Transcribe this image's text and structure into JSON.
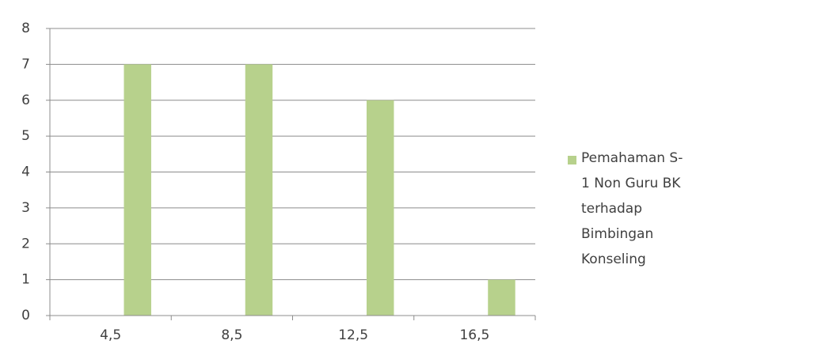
{
  "chart_data": {
    "type": "bar",
    "categories": [
      "4,5",
      "8,5",
      "12,5",
      "16,5"
    ],
    "series": [
      {
        "name": "Pemahaman S-1 Non Guru BK terhadap Bimbingan Konseling",
        "color": "#b7d18c",
        "values": [
          7,
          7,
          6,
          1
        ]
      }
    ],
    "ylim": [
      0,
      8
    ],
    "yticks": [
      0,
      1,
      2,
      3,
      4,
      5,
      6,
      7,
      8
    ],
    "grid": true,
    "legend": "right"
  }
}
